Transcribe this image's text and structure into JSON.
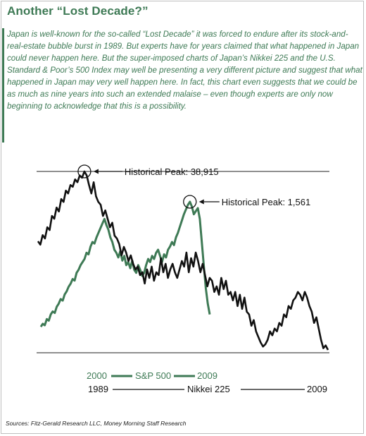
{
  "header": {
    "title": "Another “Lost Decade?”",
    "intro": "Japan is well-known for the so-called “Lost Decade” it was forced to endure after its stock-and-real-estate bubble burst in 1989. But experts have for years claimed that what happened in Japan could never happen here. But the super-imposed  charts of Japan’s Nikkei 225 and the U.S. Standard & Poor’s 500 Index may well be presenting a very different picture and suggest that what happened in Japan may very well happen here. In fact, this chart even suggests that we could be as much as  nine years into such an extended malaise – even though experts are only now beginning to acknowledge that this is a possibility."
  },
  "colors": {
    "accent": "#3e7a55",
    "sp500": "#3e7a55",
    "nikkei": "#111111"
  },
  "chart_data": {
    "type": "line",
    "annotations": [
      {
        "label": "Historical Peak: 38,915",
        "series": "Nikkei 225"
      },
      {
        "label": "Historical Peak: 1,561",
        "series": "S&P 500"
      }
    ],
    "legend": [
      {
        "series": "S&P 500",
        "start": "2000",
        "end": "2009"
      },
      {
        "series": "Nikkei 225",
        "start": "1989",
        "end": "2009"
      }
    ],
    "series": [
      {
        "name": "Nikkei 225",
        "start": "1989",
        "end": "2009",
        "values": [
          26500,
          25900,
          27600,
          27000,
          29000,
          28500,
          31000,
          30500,
          32500,
          31800,
          34000,
          33500,
          35500,
          35000,
          36500,
          36200,
          37500,
          37000,
          38200,
          37800,
          38915,
          38200,
          36500,
          35000,
          37000,
          34500,
          33500,
          33000,
          31000,
          32000,
          30500,
          29000,
          29800,
          27500,
          27000,
          26000,
          24000,
          25500,
          24500,
          23000,
          24000,
          22500,
          21500,
          22000,
          20500,
          21000,
          19000,
          21500,
          20000,
          22000,
          19500,
          21000,
          20500,
          23500,
          21000,
          22500,
          20000,
          21500,
          22500,
          21000,
          20000,
          21500,
          23000,
          22000,
          24500,
          21000,
          23500,
          22000,
          24500,
          23000,
          21000,
          22500,
          20500,
          18500,
          20000,
          19500,
          17500,
          18500,
          17000,
          20000,
          18000,
          19500,
          17000,
          17500,
          16000,
          17500,
          15000,
          17000,
          14500,
          16500,
          14000,
          13500,
          11500,
          12500,
          10500,
          9500,
          8500,
          7800,
          8200,
          9000,
          10500,
          9800,
          11000,
          10500,
          12000,
          11500,
          13500,
          13000,
          15000,
          14500,
          16000,
          16500,
          17500,
          17000,
          16000,
          17500,
          16500,
          15000,
          14000,
          12000,
          13000,
          11000,
          9000,
          7500,
          8000,
          7200
        ]
      },
      {
        "name": "S&P 500",
        "start": "2000",
        "end": "2009",
        "values": [
          750,
          770,
          760,
          800,
          790,
          830,
          850,
          840,
          880,
          900,
          930,
          920,
          960,
          980,
          1010,
          1030,
          1060,
          1050,
          1100,
          1120,
          1150,
          1170,
          1190,
          1230,
          1220,
          1270,
          1300,
          1290,
          1330,
          1360,
          1390,
          1420,
          1450,
          1410,
          1380,
          1330,
          1300,
          1250,
          1230,
          1200,
          1240,
          1180,
          1210,
          1150,
          1170,
          1130,
          1180,
          1120,
          1100,
          1150,
          1120,
          1080,
          1100,
          1150,
          1190,
          1170,
          1210,
          1190,
          1230,
          1250,
          1210,
          1170,
          1220,
          1200,
          1250,
          1270,
          1300,
          1280,
          1330,
          1360,
          1400,
          1440,
          1480,
          1510,
          1540,
          1561,
          1530,
          1480,
          1500,
          1520,
          1450,
          1300,
          1150,
          1000,
          900,
          830
        ]
      }
    ]
  },
  "source": "Sources: Fitz-Gerald Research LLC, Money Morning Staff Research"
}
